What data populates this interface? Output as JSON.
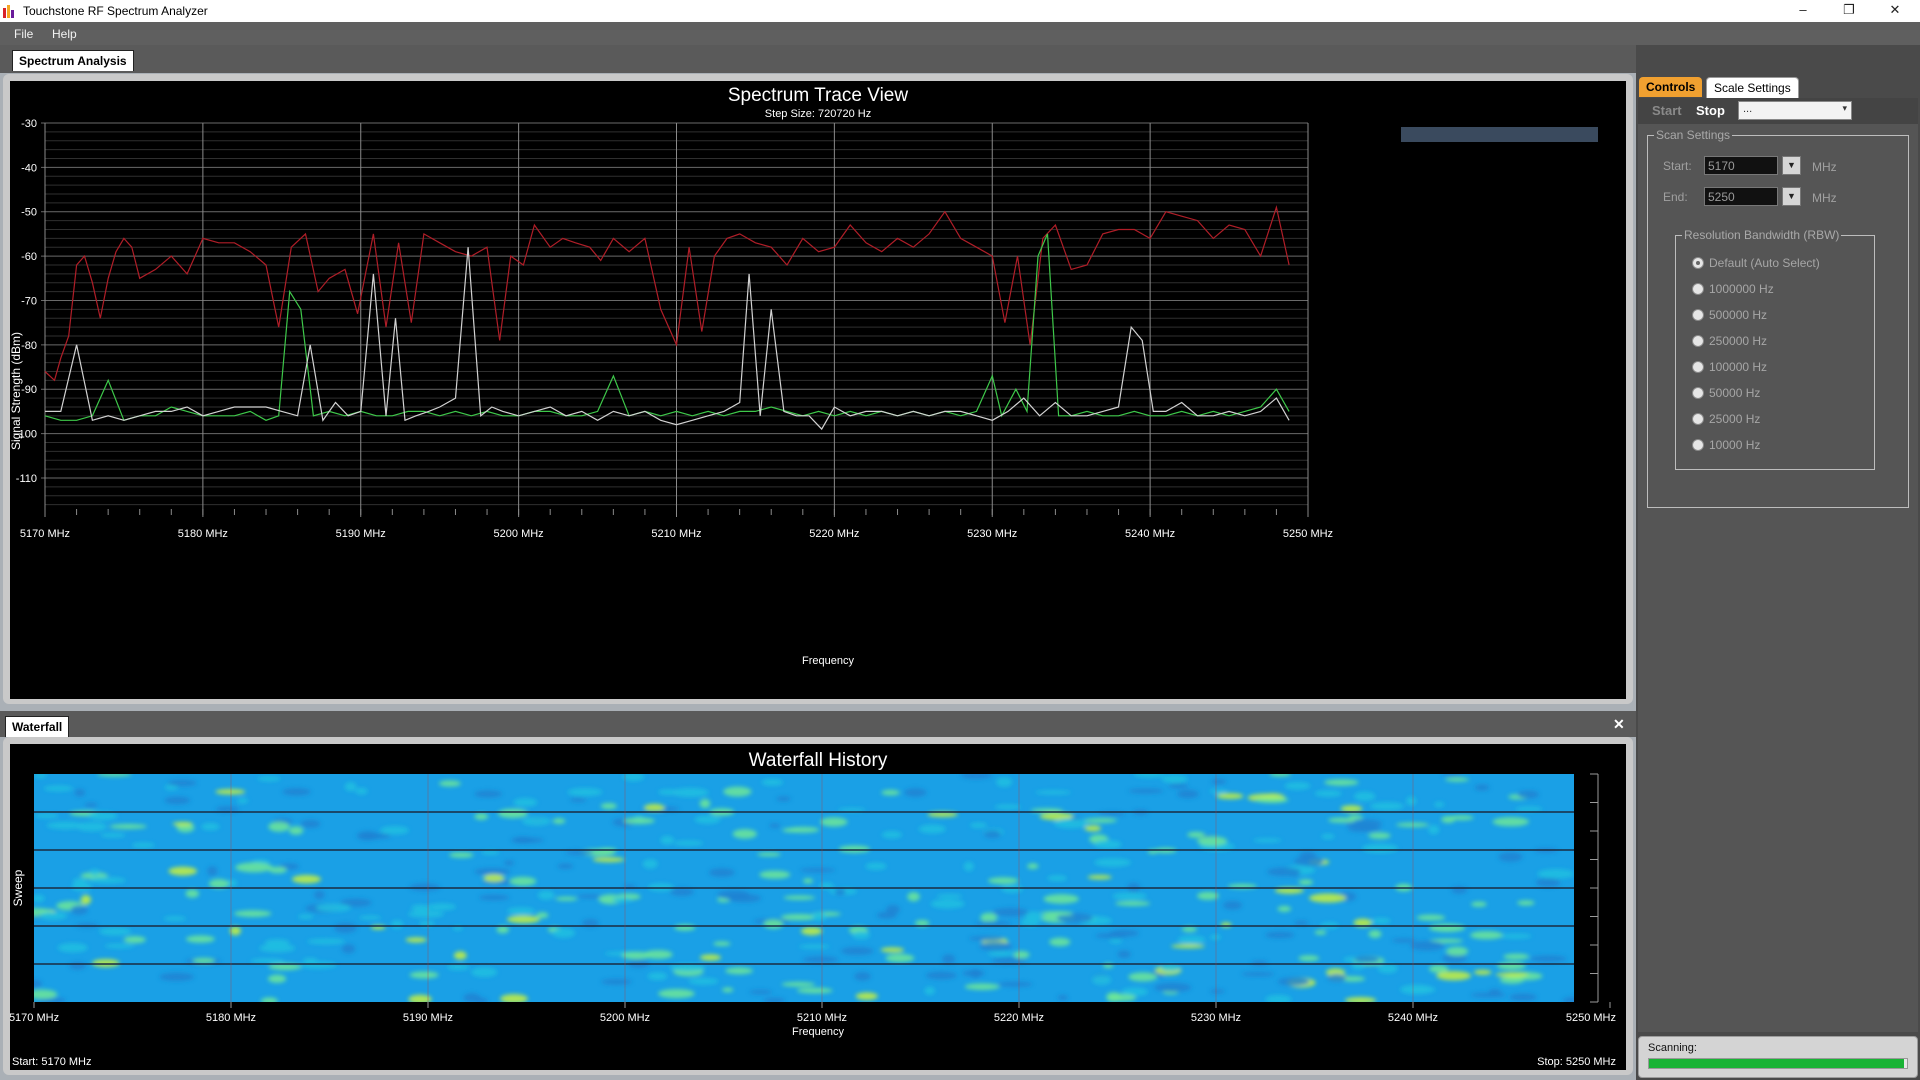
{
  "window": {
    "title": "Touchstone RF Spectrum Analyzer",
    "minimize": "–",
    "restore": "❐",
    "close": "✕"
  },
  "menu": {
    "items": [
      "File",
      "Help"
    ]
  },
  "doc_tab": "Spectrum Analysis",
  "spectrum": {
    "title": "Spectrum Trace View",
    "subtitle": "Step Size: 720720 Hz",
    "y_axis_label": "Signal Strength (dBm)",
    "x_axis_label": "Frequency"
  },
  "waterfall": {
    "tab_label": "Waterfall",
    "close_icon": "✕",
    "title": "Waterfall History",
    "y_axis_label": "Sweep",
    "x_axis_label": "Frequency",
    "start_label": "Start: 5170 MHz",
    "stop_label": "Stop: 5250 MHz"
  },
  "controls": {
    "tabs": [
      "Controls",
      "Scale Settings"
    ],
    "start_button": "Start",
    "stop_button": "Stop",
    "device_dropdown": "...",
    "scan_settings_legend": "Scan Settings",
    "start_label": "Start:",
    "start_value": "5170",
    "end_label": "End:",
    "end_value": "5250",
    "unit": "MHz",
    "rbw_legend": "Resolution Bandwidth (RBW)",
    "rbw_options": [
      "Default (Auto Select)",
      "1000000 Hz",
      "500000 Hz",
      "250000 Hz",
      "100000 Hz",
      "50000 Hz",
      "25000 Hz",
      "10000 Hz"
    ],
    "rbw_selected": 0
  },
  "status": {
    "label": "Scanning:",
    "progress": 0.99,
    "color": "#19b335"
  },
  "chart_data": [
    {
      "type": "line",
      "title": "Spectrum Trace View",
      "subtitle": "Step Size: 720720 Hz",
      "xlabel": "Frequency",
      "ylabel": "Signal Strength (dBm)",
      "xlim": [
        5170,
        5250
      ],
      "ylim": [
        -117,
        -30
      ],
      "x_ticks": [
        "5170 MHz",
        "5180 MHz",
        "5190 MHz",
        "5200 MHz",
        "5210 MHz",
        "5220 MHz",
        "5230 MHz",
        "5240 MHz",
        "5250 MHz"
      ],
      "y_ticks": [
        -30,
        -40,
        -50,
        -60,
        -70,
        -80,
        -90,
        -100,
        -110
      ],
      "grid": true,
      "series": [
        {
          "color": "#b01e28",
          "x": [
            5170.0,
            5170.6,
            5171.0,
            5171.5,
            5172.0,
            5172.5,
            5173.0,
            5173.5,
            5174.0,
            5174.5,
            5175.0,
            5175.5,
            5176.0,
            5177.0,
            5178.0,
            5179.0,
            5180.0,
            5181.0,
            5182.0,
            5183.0,
            5184.0,
            5184.8,
            5185.6,
            5186.5,
            5187.3,
            5188.0,
            5189.0,
            5189.8,
            5190.8,
            5191.6,
            5192.4,
            5193.2,
            5194.0,
            5195.0,
            5196.0,
            5197.0,
            5198.0,
            5198.8,
            5199.5,
            5200.3,
            5201.0,
            5202.0,
            5202.8,
            5203.6,
            5204.5,
            5205.2,
            5206.0,
            5207.0,
            5208.0,
            5209.0,
            5210.0,
            5210.8,
            5211.6,
            5212.4,
            5213.2,
            5214.0,
            5215.0,
            5216.0,
            5217.0,
            5218.0,
            5219.0,
            5220.0,
            5221.0,
            5222.0,
            5223.0,
            5224.0,
            5225.0,
            5226.0,
            5227.0,
            5228.0,
            5229.0,
            5230.0,
            5230.8,
            5231.6,
            5232.4,
            5233.2,
            5234.0,
            5235.0,
            5236.0,
            5237.0,
            5238.0,
            5239.0,
            5240.0,
            5241.0,
            5242.0,
            5243.0,
            5244.0,
            5245.0,
            5246.0,
            5247.0,
            5248.0,
            5248.8
          ],
          "values": [
            -86,
            -88,
            -83,
            -78,
            -62,
            -60,
            -66,
            -74,
            -65,
            -59,
            -56,
            -58,
            -65,
            -63,
            -60,
            -64,
            -56,
            -57,
            -57,
            -59,
            -62,
            -76,
            -58,
            -55,
            -68,
            -65,
            -63,
            -73,
            -55,
            -76,
            -57,
            -75,
            -55,
            -57,
            -59,
            -60,
            -58,
            -79,
            -60,
            -62,
            -53,
            -58,
            -56,
            -57,
            -58,
            -61,
            -56,
            -59,
            -56,
            -72,
            -80,
            -58,
            -77,
            -60,
            -56,
            -55,
            -57,
            -58,
            -62,
            -56,
            -59,
            -58,
            -53,
            -57,
            -59,
            -56,
            -58,
            -55,
            -50,
            -56,
            -58,
            -60,
            -75,
            -60,
            -80,
            -56,
            -53,
            -63,
            -62,
            -55,
            -54,
            -54,
            -56,
            -50,
            -51,
            -52,
            -56,
            -53,
            -54,
            -60,
            -49,
            -62
          ]
        },
        {
          "color": "#3ec84a",
          "x": [
            5170.0,
            5171.0,
            5172.0,
            5173.0,
            5173.5,
            5174.0,
            5175.0,
            5176.0,
            5177.0,
            5178.0,
            5179.0,
            5180.0,
            5181.0,
            5182.0,
            5183.0,
            5184.0,
            5184.8,
            5185.5,
            5186.2,
            5187.0,
            5188.0,
            5189.0,
            5190.0,
            5191.0,
            5192.0,
            5193.0,
            5194.0,
            5195.0,
            5196.0,
            5197.0,
            5198.0,
            5199.0,
            5200.0,
            5201.0,
            5202.0,
            5203.0,
            5204.0,
            5205.0,
            5206.0,
            5207.0,
            5208.0,
            5209.0,
            5210.0,
            5211.0,
            5212.0,
            5213.0,
            5214.0,
            5215.0,
            5216.0,
            5217.0,
            5218.0,
            5219.0,
            5220.0,
            5221.0,
            5222.0,
            5223.0,
            5224.0,
            5225.0,
            5226.0,
            5227.0,
            5228.0,
            5229.0,
            5230.0,
            5230.6,
            5231.5,
            5232.2,
            5232.9,
            5233.5,
            5234.2,
            5235.0,
            5236.0,
            5237.0,
            5238.0,
            5239.0,
            5240.0,
            5241.0,
            5242.0,
            5243.0,
            5244.0,
            5245.0,
            5246.0,
            5247.0,
            5248.0,
            5248.8
          ],
          "values": [
            -96,
            -97,
            -97,
            -96,
            -92,
            -88,
            -97,
            -96,
            -96,
            -94,
            -95,
            -96,
            -96,
            -96,
            -95,
            -97,
            -96,
            -68,
            -72,
            -96,
            -95,
            -96,
            -95,
            -96,
            -96,
            -95,
            -95,
            -96,
            -95,
            -96,
            -95,
            -96,
            -96,
            -95,
            -95,
            -96,
            -96,
            -95,
            -87,
            -96,
            -95,
            -96,
            -95,
            -96,
            -95,
            -96,
            -95,
            -95,
            -94,
            -95,
            -96,
            -95,
            -96,
            -95,
            -96,
            -95,
            -96,
            -95,
            -96,
            -95,
            -96,
            -95,
            -87,
            -96,
            -90,
            -95,
            -60,
            -55,
            -96,
            -96,
            -95,
            -96,
            -96,
            -95,
            -96,
            -96,
            -95,
            -96,
            -95,
            -96,
            -95,
            -94,
            -90,
            -95
          ]
        },
        {
          "color": "#d2d2d2",
          "x": [
            5170.0,
            5171.0,
            5172.0,
            5173.0,
            5174.0,
            5175.0,
            5176.0,
            5177.0,
            5178.0,
            5179.0,
            5180.0,
            5181.0,
            5182.0,
            5183.0,
            5184.0,
            5185.0,
            5186.0,
            5186.8,
            5187.6,
            5188.4,
            5189.2,
            5190.0,
            5190.8,
            5191.6,
            5192.2,
            5192.8,
            5193.5,
            5194.3,
            5195.0,
            5196.0,
            5196.8,
            5197.6,
            5198.3,
            5199.0,
            5200.0,
            5201.0,
            5202.0,
            5203.0,
            5204.0,
            5205.0,
            5206.0,
            5207.0,
            5208.0,
            5209.0,
            5210.0,
            5211.0,
            5212.0,
            5213.0,
            5214.0,
            5214.6,
            5215.3,
            5216.0,
            5216.8,
            5217.6,
            5218.4,
            5219.2,
            5220.0,
            5221.0,
            5222.0,
            5223.0,
            5224.0,
            5225.0,
            5226.0,
            5227.0,
            5228.0,
            5229.0,
            5230.0,
            5231.0,
            5232.0,
            5233.0,
            5234.0,
            5235.0,
            5236.0,
            5237.0,
            5238.0,
            5238.8,
            5239.5,
            5240.2,
            5241.0,
            5242.0,
            5243.0,
            5244.0,
            5245.0,
            5246.0,
            5247.0,
            5248.0,
            5248.8
          ],
          "values": [
            -95,
            -95,
            -80,
            -97,
            -96,
            -97,
            -96,
            -95,
            -95,
            -94,
            -96,
            -95,
            -94,
            -94,
            -94,
            -95,
            -96,
            -80,
            -97,
            -93,
            -96,
            -95,
            -64,
            -96,
            -74,
            -97,
            -96,
            -95,
            -94,
            -92,
            -58,
            -96,
            -94,
            -95,
            -96,
            -95,
            -94,
            -96,
            -95,
            -97,
            -95,
            -96,
            -95,
            -97,
            -98,
            -97,
            -96,
            -95,
            -93,
            -64,
            -96,
            -72,
            -95,
            -96,
            -96,
            -99,
            -94,
            -96,
            -95,
            -95,
            -96,
            -95,
            -96,
            -95,
            -95,
            -96,
            -97,
            -95,
            -92,
            -96,
            -93,
            -96,
            -96,
            -95,
            -94,
            -76,
            -79,
            -95,
            -95,
            -93,
            -96,
            -96,
            -95,
            -96,
            -95,
            -92,
            -97
          ]
        }
      ]
    },
    {
      "type": "heatmap",
      "title": "Waterfall History",
      "xlabel": "Frequency",
      "ylabel": "Sweep",
      "xlim": [
        5170,
        5250
      ],
      "x_ticks": [
        "5170 MHz",
        "5180 MHz",
        "5190 MHz",
        "5200 MHz",
        "5210 MHz",
        "5220 MHz",
        "5230 MHz",
        "5240 MHz",
        "5250 MHz"
      ],
      "colors": [
        "#1e82d2",
        "#1aa0e6",
        "#22c0e0",
        "#6ee896",
        "#c8f03c"
      ],
      "start_label": "Start: 5170 MHz",
      "stop_label": "Stop: 5250 MHz"
    }
  ]
}
